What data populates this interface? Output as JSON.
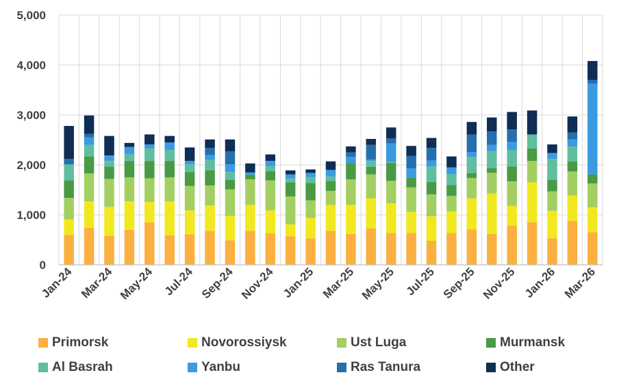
{
  "chart_data": {
    "type": "stacked-bar",
    "title": "",
    "xlabel": "",
    "ylabel": "",
    "ylim": [
      0,
      5000
    ],
    "yticks": [
      "0",
      "1,000",
      "2,000",
      "3,000",
      "4,000",
      "5,000"
    ],
    "ytick_values": [
      0,
      1000,
      2000,
      3000,
      4000,
      5000
    ],
    "categories": [
      "Jan-24",
      "Feb-24",
      "Mar-24",
      "Apr-24",
      "May-24",
      "Jun-24",
      "Jul-24",
      "Aug-24",
      "Sep-24",
      "Oct-24",
      "Nov-24",
      "Dec-24",
      "Jan-25",
      "Feb-25",
      "Mar-25",
      "Apr-25",
      "May-25",
      "Jun-25",
      "Jul-25",
      "Aug-25",
      "Sep-25",
      "Oct-25",
      "Nov-25",
      "Dec-25",
      "Jan-26",
      "Feb-26",
      "Mar-26"
    ],
    "xtick_labels": [
      "Jan-24",
      "Mar-24",
      "May-24",
      "Jul-24",
      "Sep-24",
      "Nov-24",
      "Jan-25",
      "Mar-25",
      "May-25",
      "Jul-25",
      "Sep-25",
      "Nov-25",
      "Jan-26",
      "Mar-26"
    ],
    "series": [
      {
        "name": "Primorsk",
        "color": "#FBB040",
        "values": [
          600,
          740,
          580,
          700,
          850,
          590,
          610,
          680,
          490,
          680,
          630,
          570,
          530,
          680,
          620,
          730,
          640,
          640,
          480,
          640,
          710,
          620,
          780,
          850,
          530,
          880,
          650
        ]
      },
      {
        "name": "Novorossiysk",
        "color": "#F1E81F",
        "values": [
          310,
          530,
          580,
          570,
          410,
          680,
          480,
          510,
          490,
          520,
          460,
          240,
          410,
          520,
          580,
          600,
          590,
          420,
          490,
          430,
          620,
          810,
          400,
          800,
          550,
          510,
          500
        ]
      },
      {
        "name": "Ust Luga",
        "color": "#A3CF62",
        "values": [
          430,
          560,
          560,
          480,
          470,
          480,
          490,
          400,
          530,
          510,
          600,
          560,
          350,
          280,
          510,
          480,
          450,
          490,
          440,
          310,
          410,
          410,
          490,
          430,
          390,
          480,
          480
        ]
      },
      {
        "name": "Murmansk",
        "color": "#4A9A45",
        "values": [
          350,
          340,
          250,
          330,
          350,
          330,
          280,
          300,
          190,
          90,
          180,
          280,
          350,
          200,
          330,
          150,
          360,
          200,
          250,
          220,
          100,
          100,
          300,
          250,
          230,
          200,
          180
        ]
      },
      {
        "name": "Al Basrah",
        "color": "#5FBDA0",
        "values": [
          320,
          230,
          110,
          140,
          250,
          220,
          150,
          210,
          160,
          0,
          110,
          80,
          120,
          90,
          0,
          120,
          20,
          0,
          310,
          220,
          320,
          340,
          330,
          280,
          420,
          300,
          0
        ]
      },
      {
        "name": "Yanbu",
        "color": "#3A9BE0",
        "values": [
          0,
          150,
          110,
          140,
          80,
          150,
          70,
          100,
          150,
          50,
          100,
          80,
          80,
          130,
          120,
          30,
          370,
          180,
          120,
          130,
          100,
          120,
          160,
          0,
          120,
          140,
          1820
        ]
      },
      {
        "name": "Ras Tanura",
        "color": "#266FAE",
        "values": [
          110,
          70,
          0,
          0,
          0,
          0,
          0,
          140,
          260,
          0,
          0,
          0,
          0,
          0,
          90,
          290,
          100,
          250,
          250,
          0,
          350,
          270,
          250,
          0,
          0,
          140,
          70
        ]
      },
      {
        "name": "Other",
        "color": "#0F2D55",
        "values": [
          660,
          370,
          390,
          80,
          200,
          130,
          270,
          170,
          240,
          180,
          130,
          80,
          70,
          170,
          120,
          120,
          220,
          200,
          200,
          220,
          250,
          280,
          350,
          480,
          170,
          320,
          380
        ]
      }
    ],
    "gridlines": true,
    "legend_position": "bottom"
  },
  "legend": {
    "items": [
      "Primorsk",
      "Novorossiysk",
      "Ust Luga",
      "Murmansk",
      "Al Basrah",
      "Yanbu",
      "Ras Tanura",
      "Other"
    ]
  }
}
